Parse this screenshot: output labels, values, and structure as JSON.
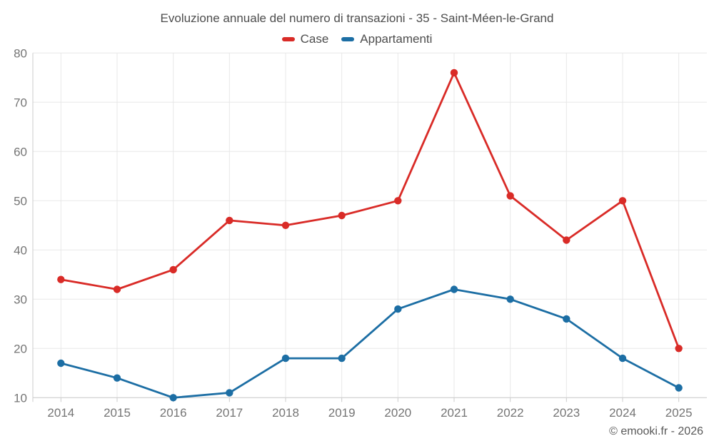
{
  "chart_data": {
    "type": "line",
    "title": "Evoluzione annuale del numero di transazioni - 35 - Saint-Méen-le-Grand",
    "categories": [
      "2014",
      "2015",
      "2016",
      "2017",
      "2018",
      "2019",
      "2020",
      "2021",
      "2022",
      "2023",
      "2024",
      "2025"
    ],
    "series": [
      {
        "name": "Case",
        "color": "#d92b27",
        "values": [
          34,
          32,
          36,
          46,
          45,
          47,
          50,
          76,
          51,
          42,
          50,
          20
        ]
      },
      {
        "name": "Appartamenti",
        "color": "#1c6ea4",
        "values": [
          17,
          14,
          10,
          11,
          18,
          18,
          28,
          32,
          30,
          26,
          18,
          12
        ]
      }
    ],
    "ylim": [
      10,
      80
    ],
    "y_ticks": [
      10,
      20,
      30,
      40,
      50,
      60,
      70,
      80
    ],
    "grid": true,
    "legend_position": "top",
    "xlabel": "",
    "ylabel": ""
  },
  "footer": {
    "credit": "© emooki.fr - 2026"
  },
  "colors": {
    "background": "#ffffff",
    "gridline": "#e8e8e8",
    "axis_line": "#cccccc",
    "axis_text": "#757575",
    "title_text": "#4d4d4d"
  }
}
